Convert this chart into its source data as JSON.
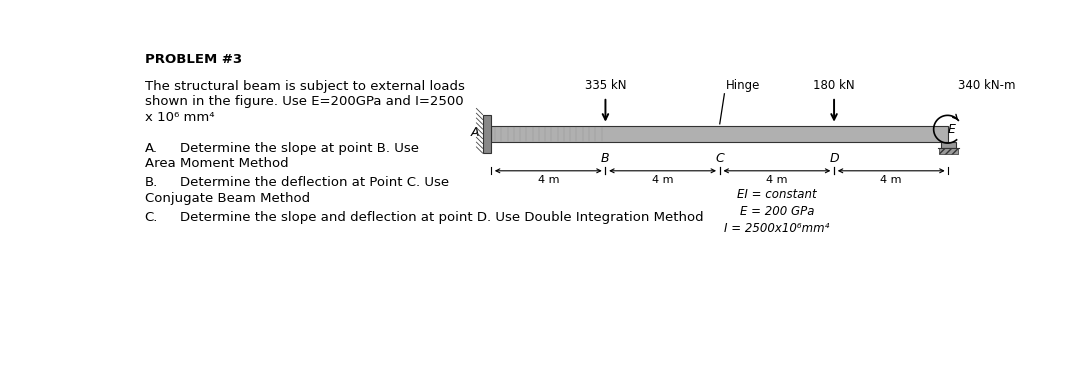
{
  "title": "PROBLEM #3",
  "intro_line1": "The structural beam is subject to external loads",
  "intro_line2": "shown in the figure. Use E=200GPa and I=2500",
  "intro_line3": "x 10⁶ mm⁴",
  "item_A_label": "A.",
  "item_A_text": "Determine the slope at point B. Use",
  "item_A2": "Area Moment Method",
  "item_B_label": "B.",
  "item_B_text": "Determine the deflection at Point C. Use",
  "item_B2": "Conjugate Beam Method",
  "item_C_label": "C.",
  "item_C_text": "Determine the slope and deflection at point D. Use Double Integration Method",
  "load_335_label": "335 kN",
  "load_180_label": "180 kN",
  "moment_label": "340 kN-m",
  "hinge_label": "Hinge",
  "point_A": "A",
  "point_B": "B",
  "point_C": "C",
  "point_D": "D",
  "point_E": "E",
  "dim_label": "4 m",
  "EI_label": "EI = constant",
  "E_label": "E = 200 GPa",
  "I_label": "I = 2500x10⁶mm⁴",
  "fig_bg": "#ffffff",
  "text_color": "#000000",
  "beam_fill": "#b0b0b0",
  "beam_edge": "#333333",
  "wall_fill": "#888888",
  "support_fill": "#999999"
}
